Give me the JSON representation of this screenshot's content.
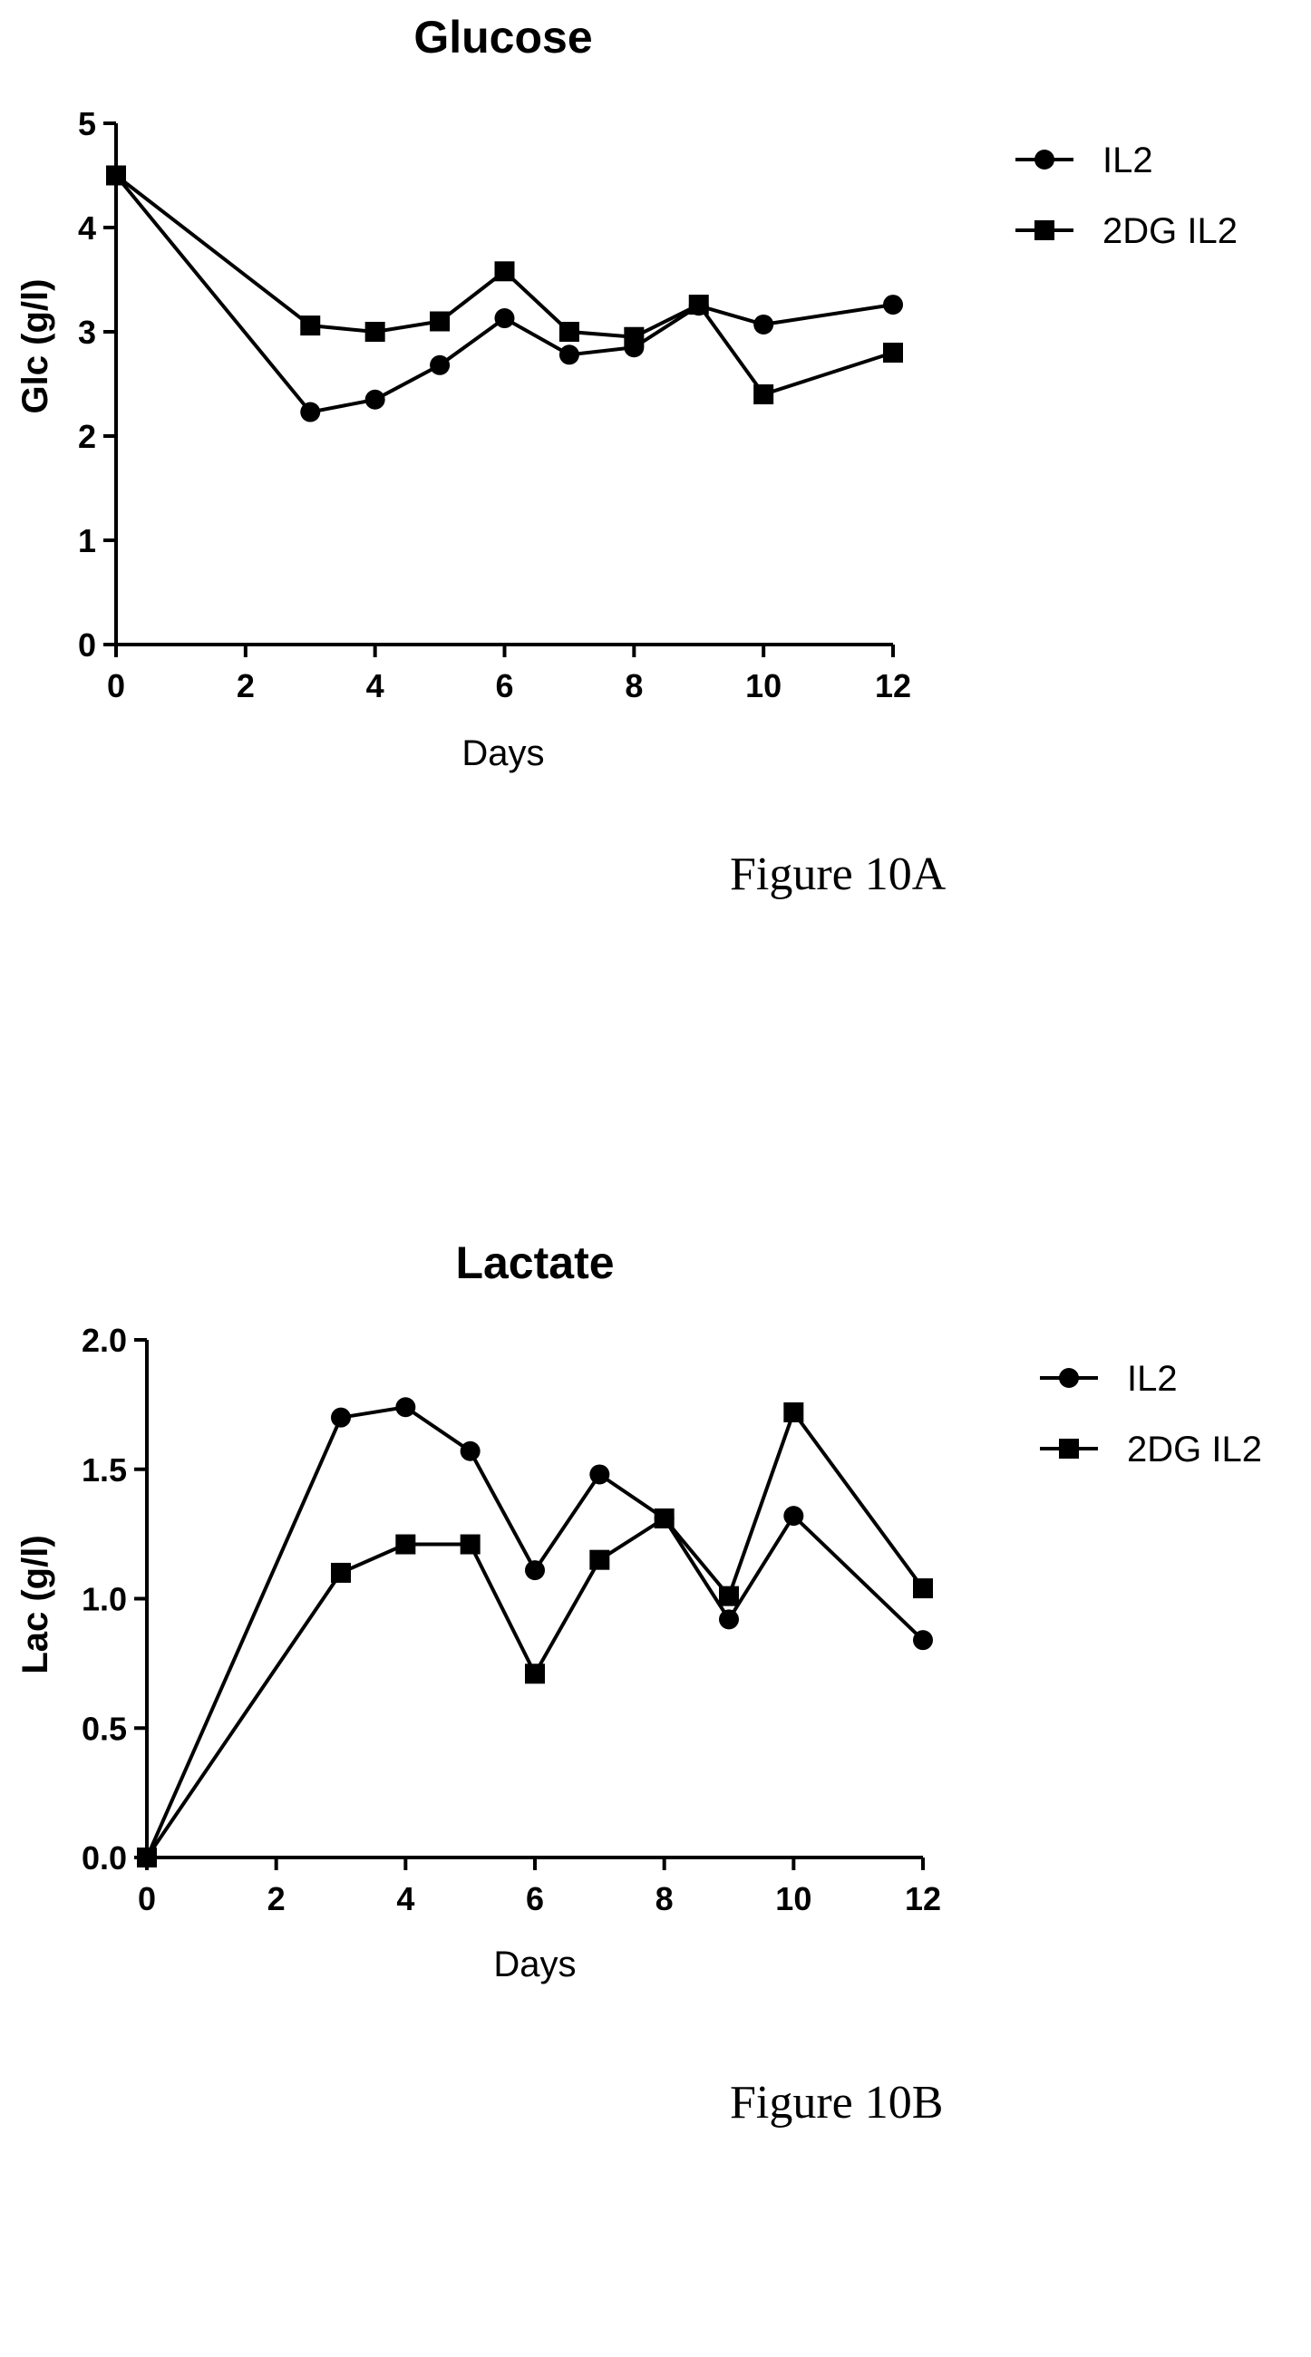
{
  "chart_data": [
    {
      "type": "line",
      "title": "Glucose",
      "xlabel": "Days",
      "ylabel": "Glc (g/l)",
      "xlim": [
        0,
        12
      ],
      "ylim": [
        0,
        5
      ],
      "xticks": [
        0,
        2,
        4,
        6,
        8,
        10,
        12
      ],
      "yticks": [
        0,
        1,
        2,
        3,
        4,
        5
      ],
      "x": [
        0,
        3,
        4,
        5,
        6,
        7,
        8,
        9,
        10,
        12
      ],
      "grid": false,
      "legend_position": "top-right",
      "series": [
        {
          "name": "IL2",
          "marker": "circle",
          "values": [
            4.5,
            2.23,
            2.35,
            2.68,
            3.13,
            2.78,
            2.85,
            3.25,
            3.07,
            3.26
          ]
        },
        {
          "name": "2DG IL2",
          "marker": "square",
          "values": [
            4.5,
            3.06,
            3.0,
            3.1,
            3.58,
            3.0,
            2.95,
            3.26,
            2.4,
            2.8
          ]
        }
      ],
      "caption": "Figure 10A"
    },
    {
      "type": "line",
      "title": "Lactate",
      "xlabel": "Days",
      "ylabel": "Lac (g/l)",
      "xlim": [
        0,
        12
      ],
      "ylim": [
        0,
        2.0
      ],
      "xticks": [
        0,
        2,
        4,
        6,
        8,
        10,
        12
      ],
      "yticks": [
        "0.0",
        "0.5",
        "1.0",
        "1.5",
        "2.0"
      ],
      "x": [
        0,
        3,
        4,
        5,
        6,
        7,
        8,
        9,
        10,
        12
      ],
      "grid": false,
      "legend_position": "top-right",
      "series": [
        {
          "name": "IL2",
          "marker": "circle",
          "values": [
            0.0,
            1.7,
            1.74,
            1.57,
            1.11,
            1.48,
            1.31,
            0.92,
            1.32,
            0.84
          ]
        },
        {
          "name": "2DG IL2",
          "marker": "square",
          "values": [
            0.0,
            1.1,
            1.21,
            1.21,
            0.71,
            1.15,
            1.31,
            1.01,
            1.72,
            1.04
          ]
        }
      ],
      "caption": "Figure 10B"
    }
  ]
}
